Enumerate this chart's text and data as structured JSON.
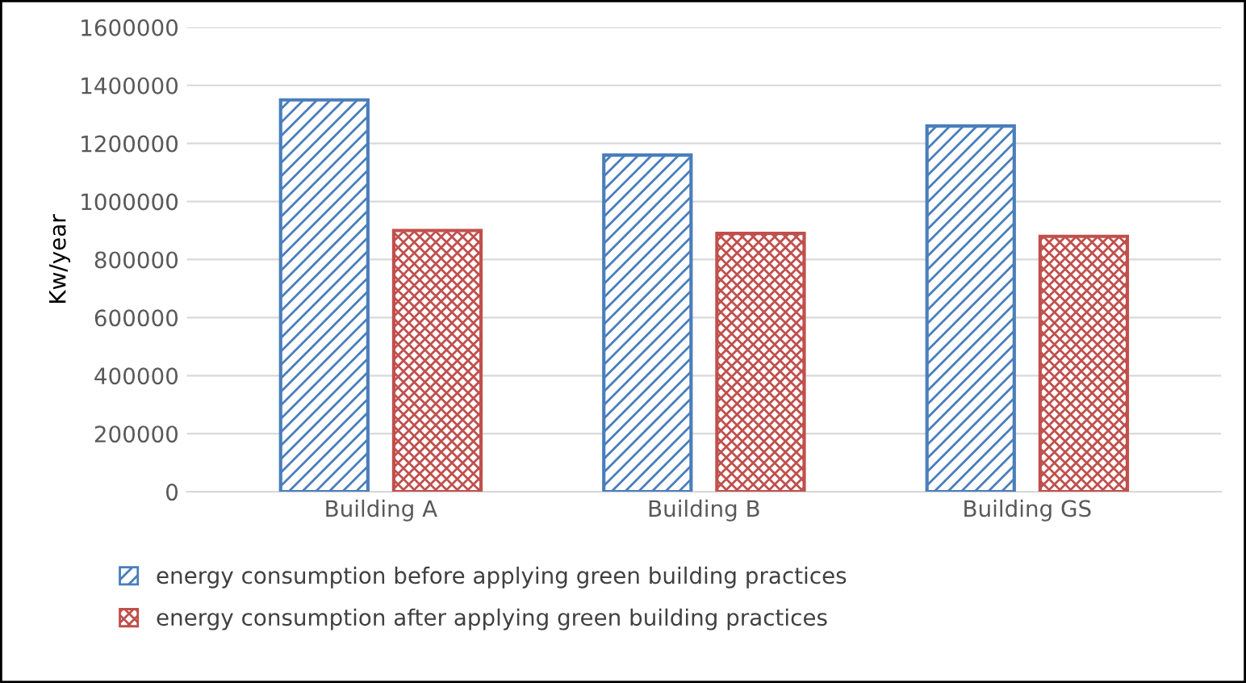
{
  "chart_data": {
    "type": "bar",
    "ylabel": "Kw/year",
    "categories": [
      "Building A",
      "Building B",
      "Building GS"
    ],
    "series": [
      {
        "name": "energy consumption before applying green building practices",
        "color": "#4a7ebb",
        "values": [
          1350000,
          1160000,
          1260000
        ]
      },
      {
        "name": "energy consumption after applying green building practices",
        "color": "#c0504d",
        "values": [
          900000,
          890000,
          880000
        ]
      }
    ],
    "ylim": [
      0,
      1600000
    ],
    "yticks": [
      0,
      200000,
      400000,
      600000,
      800000,
      1000000,
      1200000,
      1400000,
      1600000
    ],
    "grid": "y",
    "legend": "bottom"
  }
}
